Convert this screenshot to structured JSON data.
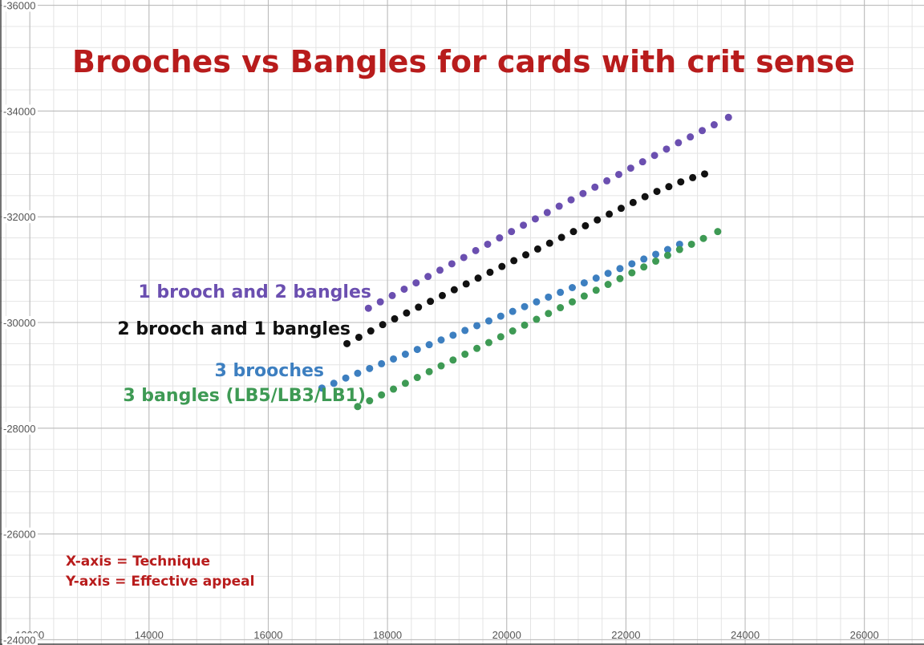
{
  "chart_data": {
    "type": "scatter",
    "title": "Brooches vs Bangles for cards with crit sense",
    "xlabel": "",
    "ylabel": "",
    "xlim": [
      11500,
      27000
    ],
    "ylim": [
      23900,
      36100
    ],
    "x_ticks": [
      12000,
      14000,
      16000,
      18000,
      20000,
      22000,
      24000,
      26000
    ],
    "y_ticks": [
      24000,
      26000,
      28000,
      30000,
      32000,
      34000,
      36000
    ],
    "x_tick_labels": [
      "12000",
      "14000",
      "16000",
      "18000",
      "20000",
      "22000",
      "24000",
      "26000"
    ],
    "y_tick_labels": [
      "-24000",
      "-26000",
      "-28000",
      "-30000",
      "-32000",
      "-34000",
      "-36000"
    ],
    "grid": true,
    "notes": [
      "X-axis = Technique",
      "Y-axis = Effective appeal"
    ],
    "series": [
      {
        "name": "1 brooch and 2 bangles",
        "color": "#6b4fb0",
        "x": [
          17680,
          17880,
          18080,
          18280,
          18480,
          18680,
          18880,
          19080,
          19280,
          19480,
          19680,
          19880,
          20080,
          20280,
          20480,
          20680,
          20880,
          21080,
          21280,
          21480,
          21680,
          21880,
          22080,
          22280,
          22480,
          22680,
          22880,
          23080,
          23280,
          23480,
          23720
        ],
        "y": [
          30270,
          30390,
          30510,
          30630,
          30750,
          30870,
          30990,
          31110,
          31230,
          31360,
          31480,
          31600,
          31720,
          31840,
          31960,
          32080,
          32200,
          32320,
          32440,
          32560,
          32680,
          32800,
          32920,
          33040,
          33160,
          33280,
          33400,
          33510,
          33630,
          33740,
          33880
        ]
      },
      {
        "name": "2 brooch and 1 bangles",
        "color": "#111111",
        "x": [
          17320,
          17520,
          17720,
          17920,
          18120,
          18320,
          18520,
          18720,
          18920,
          19120,
          19320,
          19520,
          19720,
          19920,
          20120,
          20320,
          20520,
          20720,
          20920,
          21120,
          21320,
          21520,
          21720,
          21920,
          22120,
          22320,
          22520,
          22720,
          22920,
          23120,
          23320
        ],
        "y": [
          29600,
          29720,
          29840,
          29960,
          30070,
          30180,
          30290,
          30400,
          30510,
          30620,
          30730,
          30840,
          30950,
          31060,
          31170,
          31280,
          31390,
          31500,
          31610,
          31720,
          31830,
          31940,
          32050,
          32160,
          32270,
          32380,
          32480,
          32570,
          32660,
          32740,
          32810
        ]
      },
      {
        "name": "3 brooches",
        "color": "#3d7fc0",
        "x": [
          16900,
          17100,
          17300,
          17500,
          17700,
          17900,
          18100,
          18300,
          18500,
          18700,
          18900,
          19100,
          19300,
          19500,
          19700,
          19900,
          20100,
          20300,
          20500,
          20700,
          20900,
          21100,
          21300,
          21500,
          21700,
          21900,
          22100,
          22300,
          22500,
          22700,
          22900
        ],
        "y": [
          28760,
          28850,
          28950,
          29040,
          29130,
          29220,
          29310,
          29400,
          29490,
          29580,
          29670,
          29760,
          29850,
          29940,
          30030,
          30120,
          30210,
          30300,
          30390,
          30480,
          30570,
          30660,
          30750,
          30840,
          30930,
          31020,
          31110,
          31200,
          31290,
          31380,
          31480
        ]
      },
      {
        "name": "3 bangles (LB5/LB3/LB1)",
        "color": "#3e9a54",
        "x": [
          17500,
          17700,
          17900,
          18100,
          18300,
          18500,
          18700,
          18900,
          19100,
          19300,
          19500,
          19700,
          19900,
          20100,
          20300,
          20500,
          20700,
          20900,
          21100,
          21300,
          21500,
          21700,
          21900,
          22100,
          22300,
          22500,
          22700,
          22900,
          23100,
          23300,
          23540
        ],
        "y": [
          28410,
          28520,
          28630,
          28740,
          28850,
          28960,
          29070,
          29180,
          29290,
          29400,
          29510,
          29620,
          29730,
          29840,
          29950,
          30060,
          30170,
          30280,
          30390,
          30500,
          30610,
          30720,
          30830,
          30940,
          31050,
          31160,
          31270,
          31380,
          31480,
          31590,
          31720
        ]
      }
    ]
  }
}
